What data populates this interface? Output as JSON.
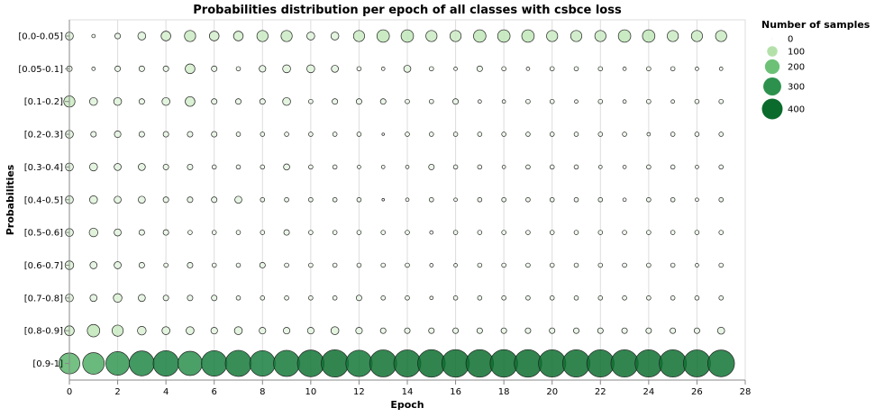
{
  "chart_data": {
    "type": "scatter",
    "title": "Probabilities distribution per epoch of all classes with csbce loss",
    "xlabel": "Epoch",
    "ylabel": "Probabilities",
    "xlim": [
      0,
      28
    ],
    "x_ticks": [
      0,
      2,
      4,
      6,
      8,
      10,
      12,
      14,
      16,
      18,
      20,
      22,
      24,
      26,
      28
    ],
    "grid": true,
    "legend_title": "Number of samples",
    "legend_placement": "top-right",
    "size_legend_values": [
      0,
      100,
      200,
      300,
      400
    ],
    "color_scale": [
      "#f2faf0",
      "#c8e9c0",
      "#9fd994",
      "#6cc177",
      "#3fa25b",
      "#1a8040",
      "#0b6b2c"
    ],
    "categories": [
      "[0.0-0.05]",
      "[0.05-0.1]",
      "[0.1-0.2]",
      "[0.2-0.3]",
      "[0.3-0.4]",
      "[0.4-0.5]",
      "[0.5-0.6]",
      "[0.6-0.7]",
      "[0.7-0.8]",
      "[0.8-0.9]",
      "[0.9-1]"
    ],
    "epochs": [
      0,
      1,
      2,
      3,
      4,
      5,
      6,
      7,
      8,
      9,
      10,
      11,
      12,
      13,
      14,
      15,
      16,
      17,
      18,
      19,
      20,
      21,
      22,
      23,
      24,
      25,
      26,
      27
    ],
    "counts": [
      [
        10,
        2,
        5,
        10,
        15,
        20,
        15,
        15,
        20,
        20,
        10,
        10,
        20,
        25,
        25,
        20,
        20,
        25,
        25,
        25,
        20,
        20,
        20,
        25,
        25,
        20,
        20,
        20
      ],
      [
        5,
        2,
        5,
        5,
        5,
        15,
        5,
        3,
        7,
        10,
        10,
        8,
        3,
        2,
        8,
        3,
        2,
        5,
        3,
        2,
        3,
        3,
        3,
        2,
        3,
        3,
        2,
        2
      ],
      [
        20,
        10,
        10,
        5,
        10,
        15,
        5,
        5,
        5,
        10,
        3,
        5,
        5,
        5,
        3,
        3,
        5,
        2,
        2,
        3,
        3,
        2,
        3,
        2,
        3,
        2,
        3,
        3
      ],
      [
        10,
        5,
        7,
        5,
        5,
        5,
        5,
        3,
        3,
        3,
        3,
        3,
        3,
        1,
        3,
        3,
        3,
        3,
        3,
        3,
        3,
        3,
        3,
        3,
        2,
        3,
        3,
        3
      ],
      [
        10,
        10,
        8,
        8,
        5,
        5,
        3,
        3,
        3,
        6,
        3,
        3,
        2,
        2,
        2,
        5,
        3,
        3,
        2,
        3,
        3,
        3,
        2,
        2,
        3,
        3,
        2,
        3
      ],
      [
        10,
        10,
        8,
        8,
        5,
        5,
        5,
        8,
        3,
        3,
        3,
        3,
        3,
        1,
        2,
        3,
        2,
        3,
        3,
        3,
        3,
        3,
        3,
        2,
        3,
        3,
        2,
        3
      ],
      [
        10,
        12,
        8,
        5,
        5,
        3,
        3,
        3,
        3,
        5,
        3,
        3,
        3,
        3,
        3,
        2,
        3,
        3,
        3,
        3,
        3,
        3,
        3,
        3,
        3,
        3,
        3,
        3
      ],
      [
        12,
        8,
        8,
        5,
        3,
        5,
        3,
        3,
        5,
        3,
        3,
        3,
        3,
        3,
        3,
        2,
        2,
        3,
        3,
        3,
        3,
        3,
        3,
        3,
        3,
        3,
        2,
        3
      ],
      [
        10,
        8,
        12,
        8,
        5,
        5,
        5,
        3,
        3,
        3,
        3,
        3,
        5,
        3,
        3,
        2,
        3,
        3,
        3,
        3,
        3,
        3,
        3,
        3,
        3,
        3,
        3,
        3
      ],
      [
        15,
        25,
        20,
        12,
        10,
        10,
        7,
        10,
        7,
        7,
        7,
        10,
        7,
        5,
        5,
        5,
        5,
        5,
        5,
        5,
        5,
        5,
        5,
        5,
        5,
        5,
        5,
        8
      ],
      [
        70,
        75,
        90,
        100,
        105,
        95,
        105,
        110,
        105,
        110,
        115,
        120,
        112,
        118,
        118,
        122,
        122,
        122,
        122,
        122,
        120,
        120,
        120,
        120,
        120,
        120,
        118,
        115
      ]
    ]
  }
}
